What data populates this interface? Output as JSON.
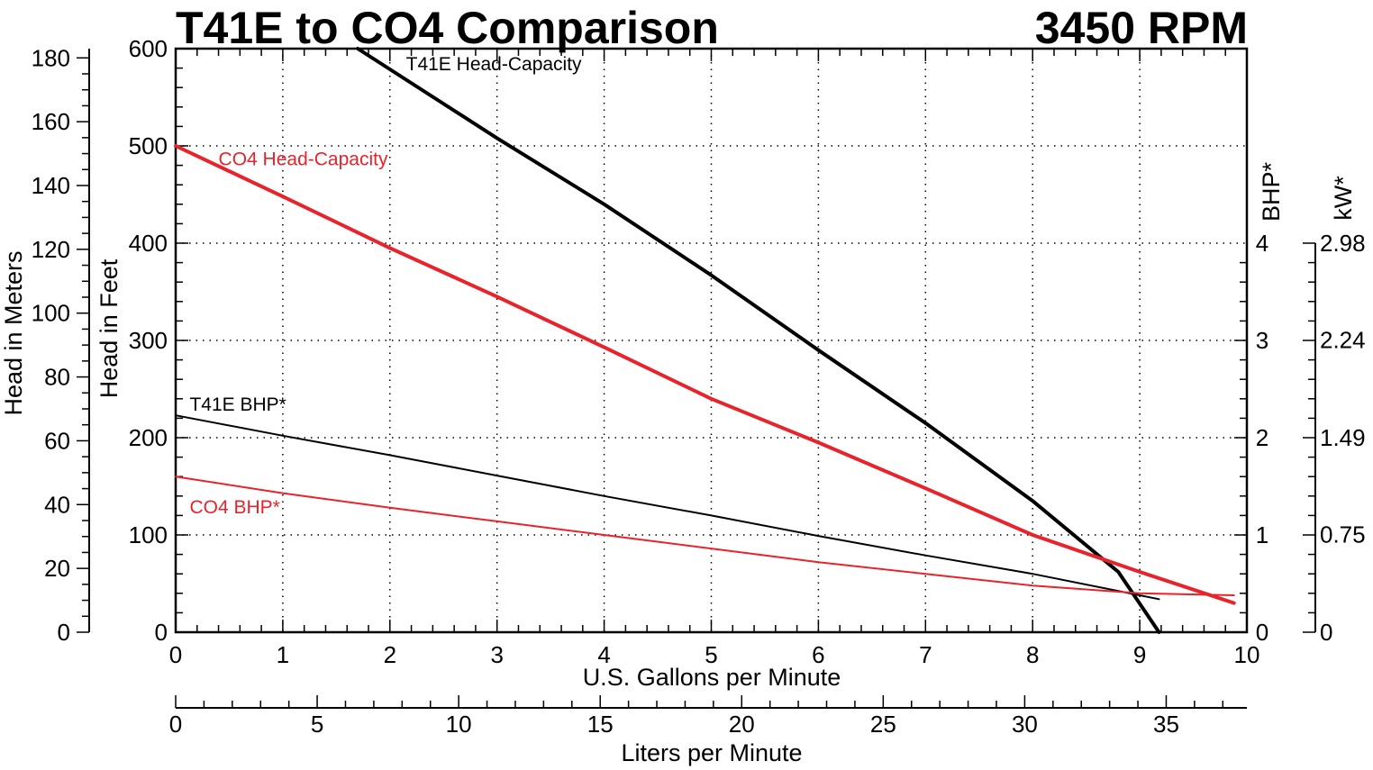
{
  "title": "T41E to CO4 Comparison",
  "subtitle": "3450 RPM",
  "colors": {
    "black": "#000000",
    "red": "#e8232b"
  },
  "chart_data": {
    "type": "line",
    "title": "T41E to CO4 Comparison",
    "subtitle": "3450 RPM",
    "grid": true,
    "axes": {
      "x_gpm": {
        "label": "U.S. Gallons per Minute",
        "range": [
          0,
          10
        ],
        "ticks": [
          "0",
          "1",
          "2",
          "3",
          "4",
          "5",
          "6",
          "7",
          "8",
          "9",
          "10"
        ]
      },
      "x_lpm": {
        "label": "Liters per Minute",
        "range": [
          0,
          37.85
        ],
        "ticks": [
          "0",
          "5",
          "10",
          "15",
          "20",
          "25",
          "30",
          "35"
        ]
      },
      "y_feet": {
        "label": "Head in Feet",
        "range": [
          0,
          600
        ],
        "ticks": [
          "0",
          "100",
          "200",
          "300",
          "400",
          "500",
          "600"
        ]
      },
      "y_meters": {
        "label": "Head in Meters",
        "range": [
          0,
          182.9
        ],
        "ticks": [
          "0",
          "20",
          "40",
          "60",
          "80",
          "100",
          "120",
          "140",
          "160",
          "180"
        ]
      },
      "y_bhp": {
        "label": "BHP*",
        "range": [
          0,
          6
        ],
        "ticks": [
          "0",
          "1",
          "2",
          "3",
          "4"
        ]
      },
      "y_kw": {
        "label": "kW*",
        "range": [
          0,
          4.47
        ],
        "ticks": [
          "0",
          "0.75",
          "1.49",
          "2.24",
          "2.98"
        ]
      }
    },
    "series": [
      {
        "name": "T41E Head-Capacity",
        "axis": "y_feet",
        "color": "black",
        "width": 4,
        "x": [
          1.7,
          3,
          4,
          5,
          6,
          7,
          8,
          8.8,
          9.18
        ],
        "y": [
          600,
          508,
          440,
          367,
          290,
          215,
          135,
          62,
          0
        ]
      },
      {
        "name": "CO4 Head-Capacity",
        "axis": "y_feet",
        "color": "red",
        "width": 4,
        "x": [
          0,
          1,
          2,
          3,
          4,
          5,
          6,
          7,
          8,
          9,
          9.88
        ],
        "y": [
          500,
          448,
          395,
          345,
          293,
          240,
          195,
          148,
          100,
          62,
          30
        ]
      },
      {
        "name": "T41E BHP*",
        "axis": "y_bhp",
        "color": "black",
        "width": 2,
        "x": [
          0,
          1,
          2,
          3,
          4,
          5,
          6,
          7,
          8,
          9,
          9.18
        ],
        "y": [
          2.23,
          2.02,
          1.82,
          1.61,
          1.4,
          1.2,
          0.99,
          0.79,
          0.6,
          0.38,
          0.34
        ]
      },
      {
        "name": "CO4 BHP*",
        "axis": "y_bhp",
        "color": "red",
        "width": 2,
        "x": [
          0,
          1,
          2,
          3,
          4,
          5,
          6,
          7,
          8,
          9,
          9.88
        ],
        "y": [
          1.6,
          1.43,
          1.28,
          1.14,
          1.0,
          0.86,
          0.72,
          0.6,
          0.48,
          0.4,
          0.38
        ]
      }
    ],
    "annotations": [
      {
        "text": "T41E Head-Capacity",
        "color": "black",
        "x": 2.15,
        "y_feet": 578
      },
      {
        "text": "CO4 Head-Capacity",
        "color": "red",
        "x": 0.4,
        "y_feet": 480
      },
      {
        "text": "T41E BHP*",
        "color": "black",
        "x": 0.13,
        "y_feet": 228
      },
      {
        "text": "CO4 BHP*",
        "color": "red",
        "x": 0.13,
        "y_feet": 122
      }
    ]
  }
}
